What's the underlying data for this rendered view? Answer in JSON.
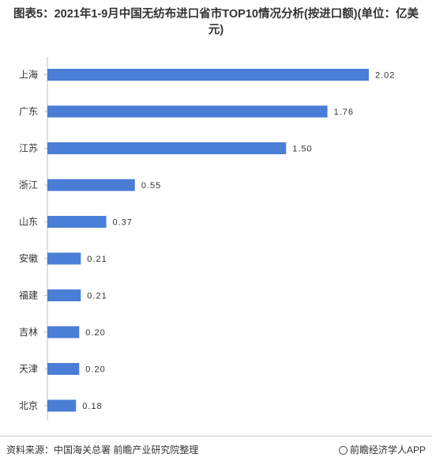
{
  "chart_data": {
    "type": "bar",
    "orientation": "horizontal",
    "title": "图表5：2021年1-9月中国无纺布进口省市TOP10情况分析(按进口额)(单位：亿美元)",
    "categories": [
      "上海",
      "广东",
      "江苏",
      "浙江",
      "山东",
      "安徽",
      "福建",
      "吉林",
      "天津",
      "北京"
    ],
    "values": [
      2.02,
      1.76,
      1.5,
      0.55,
      0.37,
      0.21,
      0.21,
      0.2,
      0.2,
      0.18
    ],
    "value_labels": [
      "2.02",
      "1.76",
      "1.50",
      "0.55",
      "0.37",
      "0.21",
      "0.21",
      "0.20",
      "0.20",
      "0.18"
    ],
    "bar_color": "#4a7ed6",
    "axis_color": "#bfbfbf",
    "xlim": [
      0,
      2.02
    ],
    "grid": false,
    "legend": "none"
  },
  "footer": {
    "source": "资料来源：中国海关总署 前瞻产业研究院整理",
    "brand": "前瞻经济学人APP"
  }
}
